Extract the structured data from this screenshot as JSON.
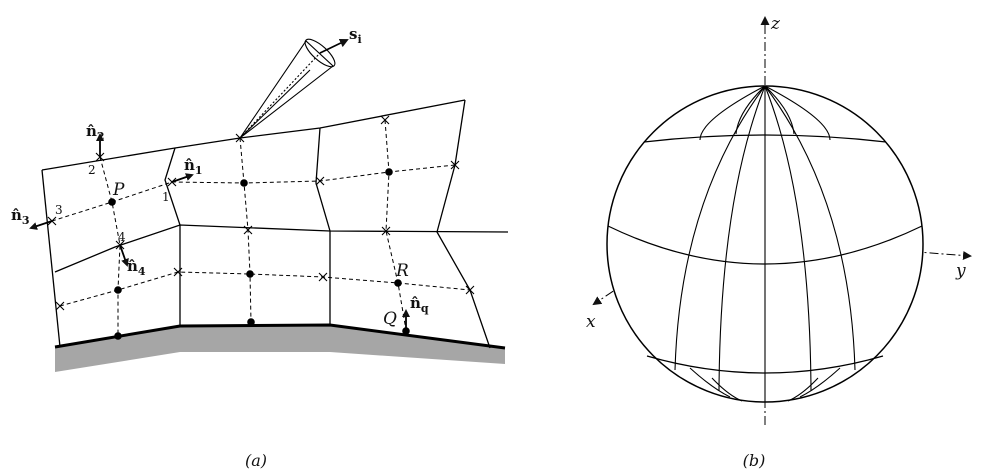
{
  "panel_a": {
    "caption": "(a)",
    "points": {
      "P": "P",
      "R": "R",
      "Q": "Q"
    },
    "node_numbers": {
      "n1": "1",
      "n2": "2",
      "n3": "3",
      "n4": "4"
    },
    "vectors": {
      "s": {
        "base": "s",
        "sub": "i"
      },
      "n1": {
        "base": "n̂",
        "sub": "1"
      },
      "n2": {
        "base": "n̂",
        "sub": "2"
      },
      "n3": {
        "base": "n̂",
        "sub": "3"
      },
      "n4": {
        "base": "n̂",
        "sub": "4"
      },
      "nq": {
        "base": "n̂",
        "sub": "q"
      }
    }
  },
  "panel_b": {
    "caption": "(b)",
    "axes": {
      "x": "x",
      "y": "y",
      "z": "z"
    }
  }
}
